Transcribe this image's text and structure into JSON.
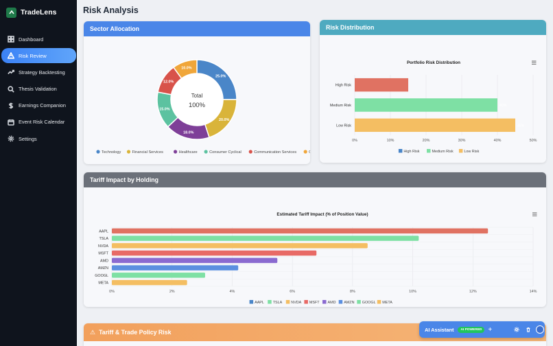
{
  "brand": {
    "name": "TradeLens"
  },
  "nav": [
    {
      "label": "Dashboard",
      "icon": "grid-icon",
      "active": false
    },
    {
      "label": "Risk Review",
      "icon": "warning-icon",
      "active": true
    },
    {
      "label": "Strategy Backtesting",
      "icon": "trend-up-icon",
      "active": false
    },
    {
      "label": "Thesis Validation",
      "icon": "search-icon",
      "active": false
    },
    {
      "label": "Earnings Companion",
      "icon": "dollar-icon",
      "active": false
    },
    {
      "label": "Event Risk Calendar",
      "icon": "calendar-icon",
      "active": false
    },
    {
      "label": "Settings",
      "icon": "gear-icon",
      "active": false
    }
  ],
  "page": {
    "title": "Risk Analysis"
  },
  "sector": {
    "header": "Sector Allocation",
    "center_label": "Total",
    "center_value": "100%"
  },
  "risk": {
    "header": "Risk Distribution",
    "chart_title": "Portfolio Risk Distribution"
  },
  "tariff": {
    "header": "Tariff Impact by Holding",
    "chart_title": "Estimated Tariff Impact (% of Position Value)"
  },
  "policy": {
    "header": "Tariff & Trade Policy Risk",
    "icon": "warning-icon"
  },
  "ai": {
    "title": "AI Assistant",
    "badge": "AI POWERED"
  },
  "chart_data": [
    {
      "type": "pie",
      "title": "",
      "categories": [
        "Technology",
        "Financial Services",
        "Healthcare",
        "Consumer Cyclical",
        "Communication Services",
        "Other"
      ],
      "values": [
        25.0,
        20.0,
        18.0,
        15.0,
        12.0,
        10.0
      ],
      "labels": [
        "25.0%",
        "20.0%",
        "18.0%",
        "15.0%",
        "12.0%",
        "10.0%"
      ],
      "colors": [
        "#4a86c8",
        "#d9b43a",
        "#7e3f98",
        "#5cc2a0",
        "#d8524a",
        "#f0a63a"
      ],
      "legend": "bottom"
    },
    {
      "type": "bar",
      "orientation": "horizontal",
      "title": "Portfolio Risk Distribution",
      "categories": [
        "High Risk",
        "Medium Risk",
        "Low Risk"
      ],
      "values": [
        15,
        40,
        45
      ],
      "value_labels": [
        "",
        "40%",
        "45%"
      ],
      "colors": [
        "#e07262",
        "#7ee0a4",
        "#f4be62"
      ],
      "legend_entries": [
        "High Risk",
        "Medium Risk",
        "Low Risk"
      ],
      "legend_colors": [
        "#4a86c8",
        "#7ee0a4",
        "#f4be62"
      ],
      "xlim": [
        0,
        50
      ],
      "xticks": [
        "0%",
        "10%",
        "20%",
        "30%",
        "40%",
        "50%"
      ],
      "legend": "bottom"
    },
    {
      "type": "bar",
      "orientation": "horizontal",
      "title": "Estimated Tariff Impact (% of Position Value)",
      "categories": [
        "AAPL",
        "TSLA",
        "NVDA",
        "MSFT",
        "AMD",
        "AMZN",
        "GOOGL",
        "META"
      ],
      "values": [
        12.5,
        10.2,
        8.5,
        6.8,
        5.5,
        4.2,
        3.1,
        2.5
      ],
      "colors": [
        "#e07262",
        "#7ee0a4",
        "#f4be62",
        "#e86a66",
        "#8a6ad0",
        "#5b8fe0",
        "#7ee0a4",
        "#f4be62"
      ],
      "legend_entries": [
        "AAPL",
        "TSLA",
        "NVDA",
        "MSFT",
        "AMD",
        "AMZN",
        "GOOGL",
        "META"
      ],
      "legend_colors": [
        "#4a86c8",
        "#7ee0a4",
        "#f4be62",
        "#e86a66",
        "#8a6ad0",
        "#5b8fe0",
        "#7ee0a4",
        "#f4be62"
      ],
      "xlim": [
        0,
        14
      ],
      "xticks": [
        "0%",
        "2%",
        "4%",
        "6%",
        "8%",
        "10%",
        "12%",
        "14%"
      ],
      "legend": "bottom"
    }
  ]
}
